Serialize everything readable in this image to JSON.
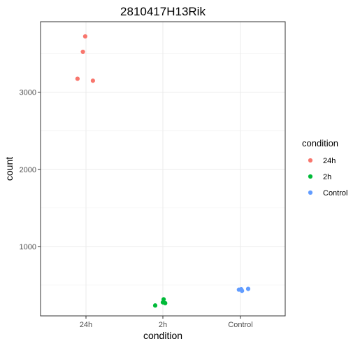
{
  "chart_data": {
    "type": "scatter",
    "title": "2810417H13Rik",
    "xlabel": "condition",
    "ylabel": "count",
    "categories": [
      "24h",
      "2h",
      "Control"
    ],
    "ylim": [
      100,
      3915
    ],
    "yticks": [
      1000,
      2000,
      3000
    ],
    "grid": true,
    "legend": {
      "title": "condition",
      "placement": "right",
      "entries": [
        "24h",
        "2h",
        "Control"
      ]
    },
    "colors": {
      "24h": "#F8766D",
      "2h": "#00BA38",
      "Control": "#619CFF"
    },
    "series": [
      {
        "name": "24h",
        "category": "24h",
        "points": [
          {
            "jitter": -0.11,
            "y": 3175
          },
          {
            "jitter": -0.04,
            "y": 3525
          },
          {
            "jitter": -0.01,
            "y": 3725
          },
          {
            "jitter": 0.09,
            "y": 3150
          }
        ]
      },
      {
        "name": "2h",
        "category": "2h",
        "points": [
          {
            "jitter": -0.1,
            "y": 235
          },
          {
            "jitter": 0.0,
            "y": 275
          },
          {
            "jitter": 0.01,
            "y": 315
          },
          {
            "jitter": 0.03,
            "y": 265
          }
        ]
      },
      {
        "name": "Control",
        "category": "Control",
        "points": [
          {
            "jitter": -0.02,
            "y": 440
          },
          {
            "jitter": 0.01,
            "y": 445
          },
          {
            "jitter": 0.02,
            "y": 425
          },
          {
            "jitter": 0.1,
            "y": 450
          }
        ]
      }
    ]
  }
}
